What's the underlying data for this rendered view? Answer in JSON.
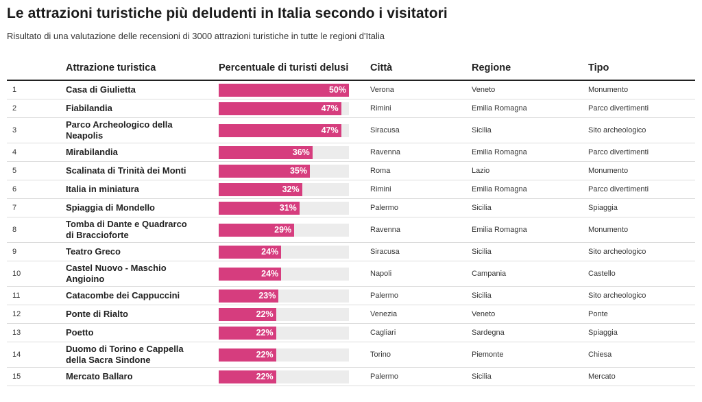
{
  "title": "Le attrazioni turistiche più deludenti in Italia secondo i visitatori",
  "subtitle": "Risultato di una valutazione delle recensioni di 3000 attrazioni turistiche in tutte le regioni d'Italia",
  "headers": {
    "name": "Attrazione turistica",
    "percent": "Percentuale di turisti delusi",
    "city": "Città",
    "region": "Regione",
    "type": "Tipo"
  },
  "colors": {
    "bar": "#d63d7e",
    "track": "#ececec"
  },
  "chart_data": {
    "type": "table",
    "title": "Le attrazioni turistiche più deludenti in Italia secondo i visitatori",
    "subtitle": "Risultato di una valutazione delle recensioni di 3000 attrazioni turistiche in tutte le regioni d'Italia",
    "columns": [
      "",
      "Attrazione turistica",
      "Percentuale di turisti delusi",
      "Città",
      "Regione",
      "Tipo"
    ],
    "xlim": [
      0,
      50
    ],
    "rows": [
      {
        "rank": "1",
        "name": "Casa di Giulietta",
        "value": 50,
        "label": "50%",
        "city": "Verona",
        "region": "Veneto",
        "type": "Monumento",
        "lines": 1
      },
      {
        "rank": "2",
        "name": "Fiabilandia",
        "value": 47,
        "label": "47%",
        "city": "Rimini",
        "region": "Emilia Romagna",
        "type": "Parco divertimenti",
        "lines": 1
      },
      {
        "rank": "3",
        "name": "Parco Archeologico della Neapolis",
        "value": 47,
        "label": "47%",
        "city": "Siracusa",
        "region": "Sicilia",
        "type": "Sito archeologico",
        "lines": 2
      },
      {
        "rank": "4",
        "name": "Mirabilandia",
        "value": 36,
        "label": "36%",
        "city": "Ravenna",
        "region": "Emilia Romagna",
        "type": "Parco divertimenti",
        "lines": 1
      },
      {
        "rank": "5",
        "name": "Scalinata di Trinità dei Monti",
        "value": 35,
        "label": "35%",
        "city": "Roma",
        "region": "Lazio",
        "type": "Monumento",
        "lines": 1
      },
      {
        "rank": "6",
        "name": "Italia in miniatura",
        "value": 32,
        "label": "32%",
        "city": "Rimini",
        "region": "Emilia Romagna",
        "type": "Parco divertimenti",
        "lines": 1
      },
      {
        "rank": "7",
        "name": "Spiaggia di Mondello",
        "value": 31,
        "label": "31%",
        "city": "Palermo",
        "region": "Sicilia",
        "type": "Spiaggia",
        "lines": 1
      },
      {
        "rank": "8",
        "name": "Tomba di Dante e Quadrarco di Braccioforte",
        "value": 29,
        "label": "29%",
        "city": "Ravenna",
        "region": "Emilia Romagna",
        "type": "Monumento",
        "lines": 2
      },
      {
        "rank": "9",
        "name": "Teatro Greco",
        "value": 24,
        "label": "24%",
        "city": "Siracusa",
        "region": "Sicilia",
        "type": "Sito archeologico",
        "lines": 1
      },
      {
        "rank": "10",
        "name": "Castel Nuovo - Maschio Angioino",
        "value": 24,
        "label": "24%",
        "city": "Napoli",
        "region": "Campania",
        "type": "Castello",
        "lines": 2
      },
      {
        "rank": "11",
        "name": "Catacombe dei Cappuccini",
        "value": 23,
        "label": "23%",
        "city": "Palermo",
        "region": "Sicilia",
        "type": "Sito archeologico",
        "lines": 1
      },
      {
        "rank": "12",
        "name": "Ponte di Rialto",
        "value": 22,
        "label": "22%",
        "city": "Venezia",
        "region": "Veneto",
        "type": "Ponte",
        "lines": 1
      },
      {
        "rank": "13",
        "name": "Poetto",
        "value": 22,
        "label": "22%",
        "city": "Cagliari",
        "region": "Sardegna",
        "type": "Spiaggia",
        "lines": 1
      },
      {
        "rank": "14",
        "name": "Duomo di Torino e Cappella della Sacra Sindone",
        "value": 22,
        "label": "22%",
        "city": "Torino",
        "region": "Piemonte",
        "type": "Chiesa",
        "lines": 2
      },
      {
        "rank": "15",
        "name": "Mercato Ballaro",
        "value": 22,
        "label": "22%",
        "city": "Palermo",
        "region": "Sicilia",
        "type": "Mercato",
        "lines": 1
      }
    ]
  }
}
